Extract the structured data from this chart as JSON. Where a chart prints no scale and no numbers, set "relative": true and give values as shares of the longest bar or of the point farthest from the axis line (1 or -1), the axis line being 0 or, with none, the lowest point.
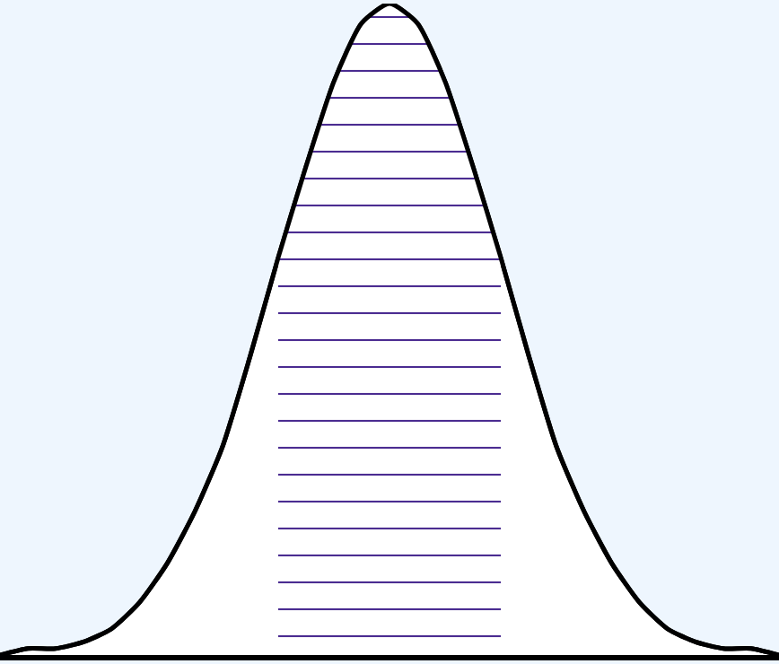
{
  "chart_data": {
    "type": "area",
    "relative": true,
    "legend": false,
    "categories": [
      null,
      null,
      null,
      null,
      null,
      null,
      null,
      null,
      null,
      null,
      null,
      null,
      null,
      null,
      null,
      null,
      null,
      null,
      null,
      null,
      null,
      null,
      null,
      null,
      null,
      null,
      null,
      null,
      null
    ],
    "series": [
      {
        "color": "#000000",
        "values": [
          0.0,
          0.01,
          0.01,
          0.02,
          0.04,
          0.08,
          0.14,
          0.22,
          0.32,
          0.46,
          0.61,
          0.75,
          0.88,
          0.97,
          1,
          0.97,
          0.88,
          0.75,
          0.61,
          0.46,
          0.32,
          0.22,
          0.14,
          0.08,
          0.04,
          0.02,
          0.01,
          0.01,
          0.0
        ]
      },
      {
        "color": "#4b2c91",
        "values": [
          null,
          null,
          null,
          null,
          null,
          null,
          null,
          null,
          null,
          null,
          0.61,
          0.75,
          0.88,
          0.97,
          1,
          0.97,
          0.88,
          0.75,
          0.61,
          null,
          null,
          null,
          null,
          null,
          null,
          null,
          null,
          null,
          null
        ]
      }
    ]
  }
}
